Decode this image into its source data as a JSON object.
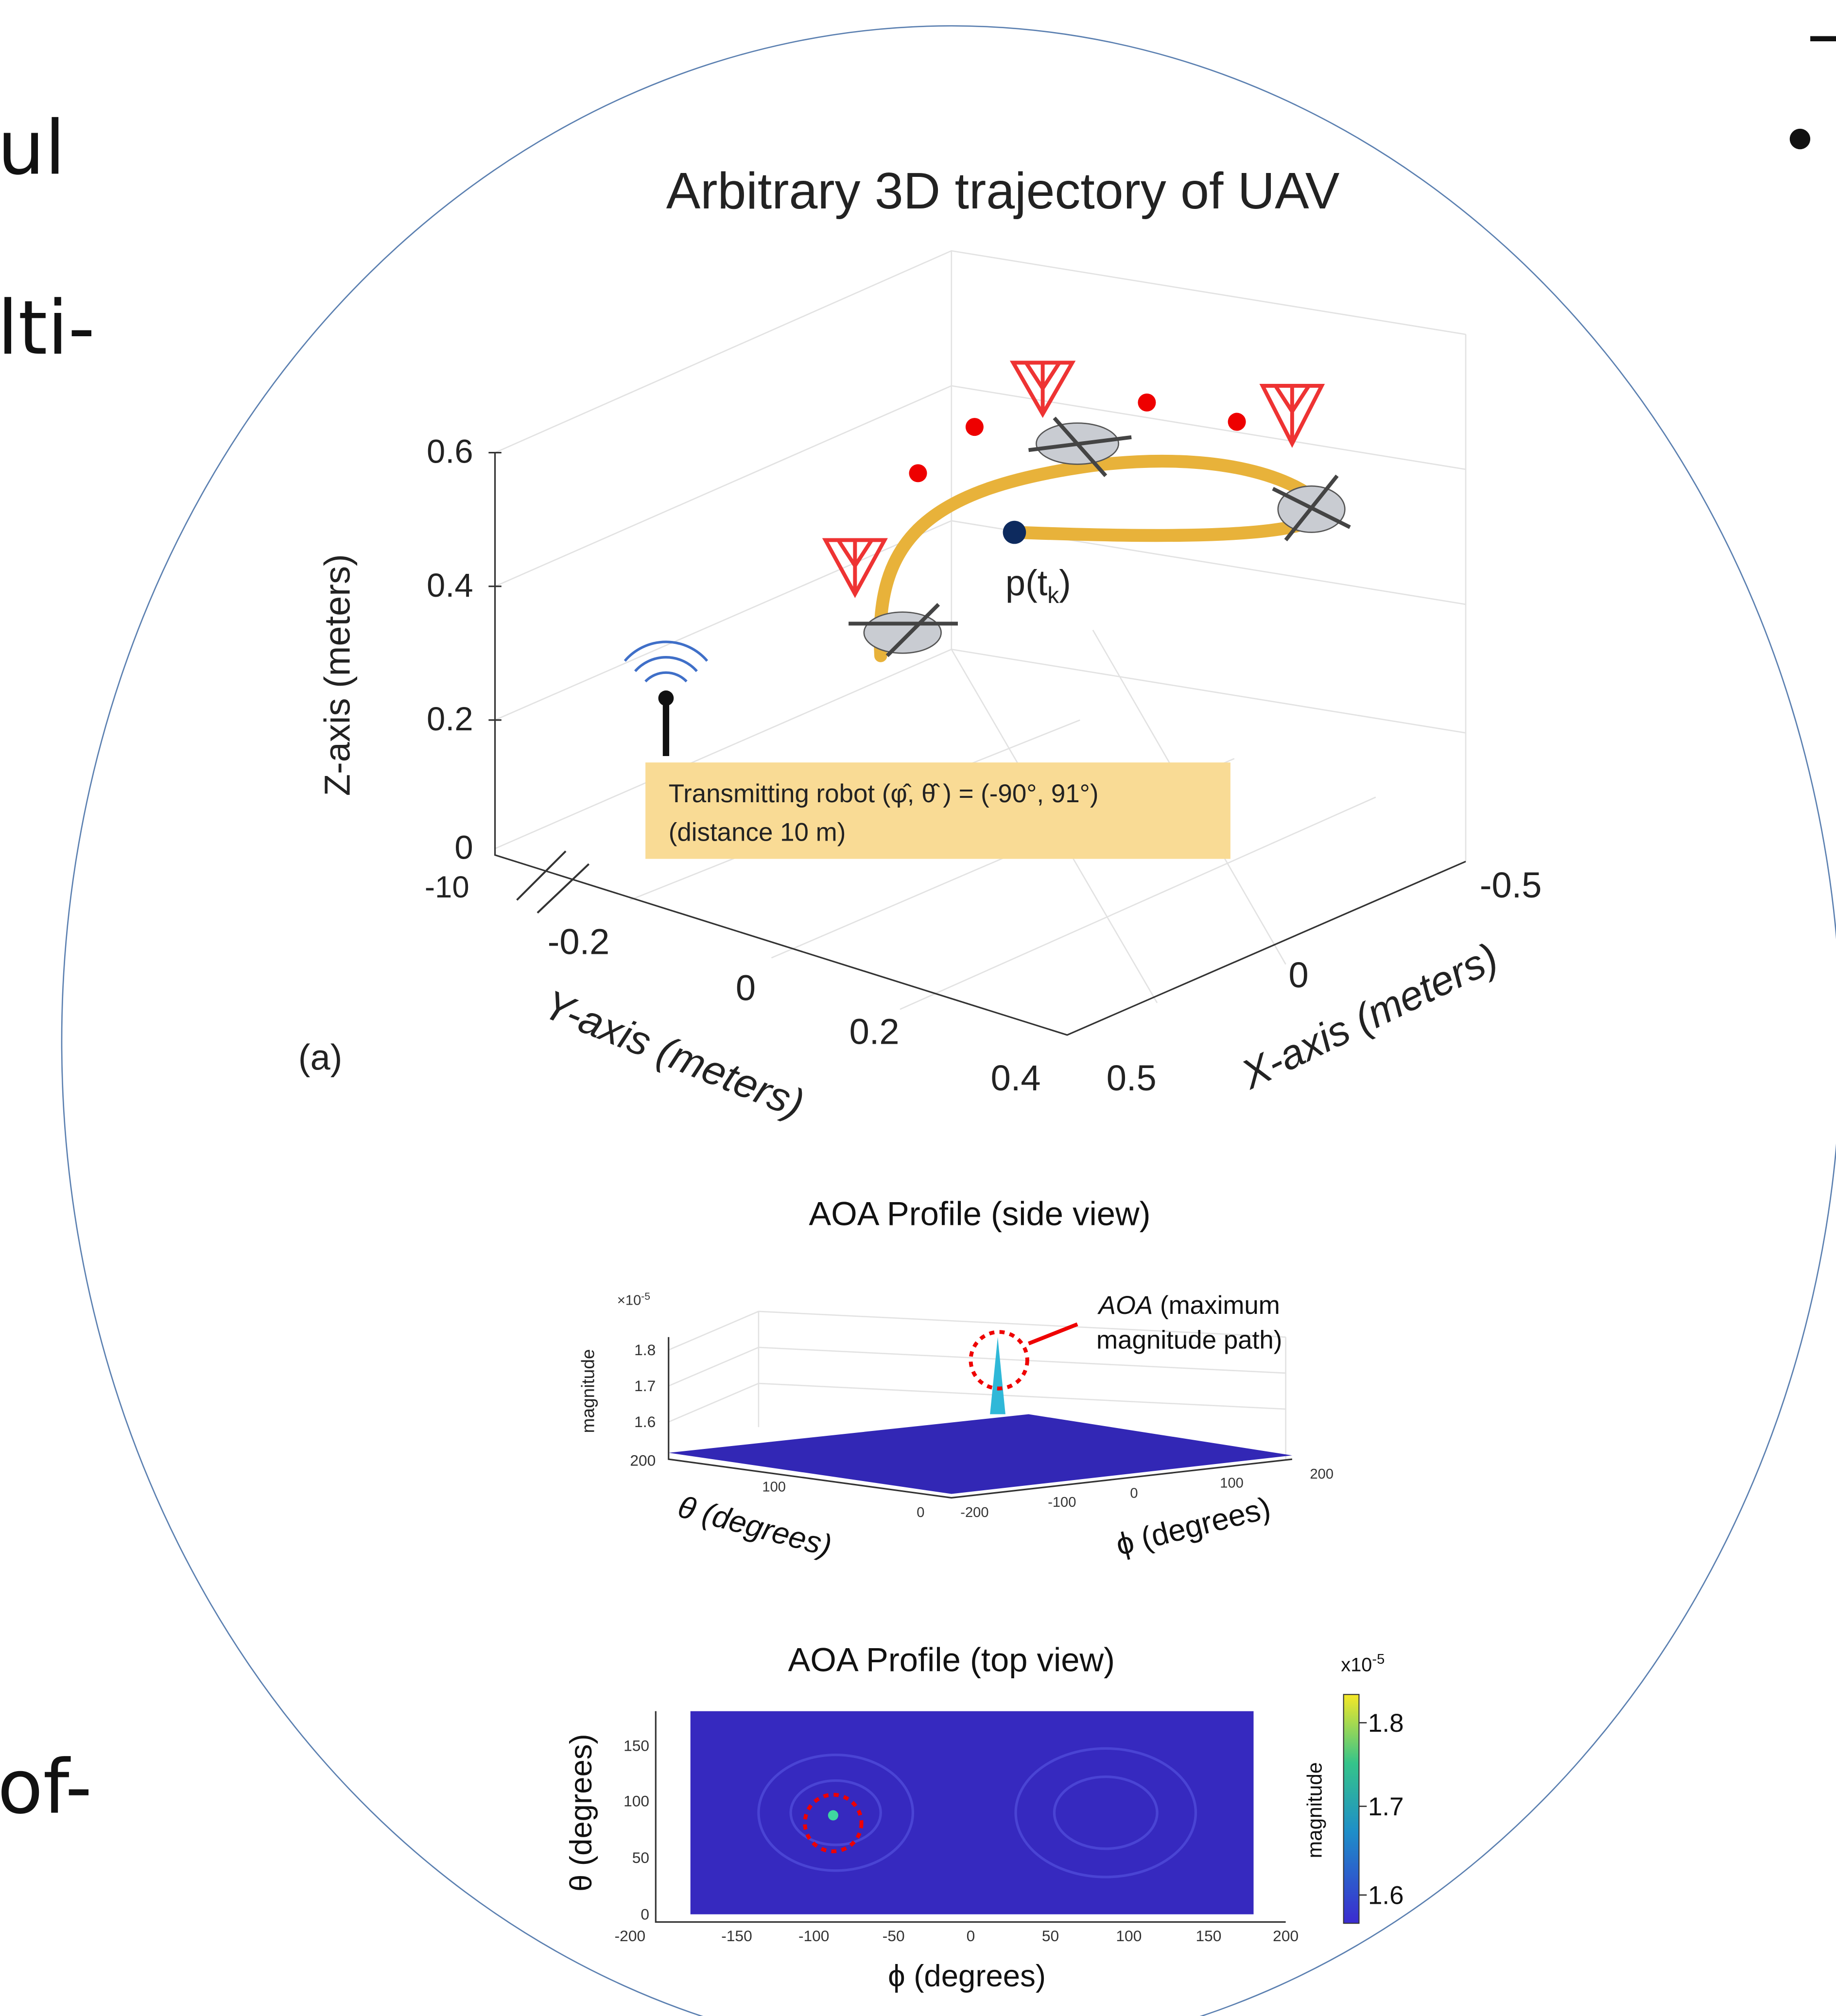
{
  "slide_fragments": {
    "line1": "ul",
    "line2": "lti-",
    "line3": "of-"
  },
  "panel_a": {
    "title": "Arbitrary 3D trajectory of UAV",
    "label": "(a)",
    "z_axis": {
      "label": "Z-axis (meters)",
      "ticks": [
        "0.6",
        "0.4",
        "0.2",
        "0",
        "-10"
      ]
    },
    "y_axis": {
      "label": "Y-axis (meters)",
      "ticks": [
        "-0.2",
        "0",
        "0.2",
        "0.4"
      ]
    },
    "x_axis": {
      "label": "X-axis (meters)",
      "ticks": [
        "-0.5",
        "0",
        "0.5"
      ]
    },
    "point_label": {
      "base": "p(t",
      "sub": "k",
      "close": ")"
    },
    "annotation": {
      "line1": "Transmitting robot (φ̂, θ̂ ) = (-90°, 91°)",
      "line2": "(distance 10 m)"
    }
  },
  "side_view": {
    "title": "AOA Profile (side view)",
    "exponent": {
      "base": "×10",
      "sup": "-5"
    },
    "z_label": "magnitude",
    "z_ticks": [
      "1.8",
      "1.7",
      "1.6",
      "200"
    ],
    "theta_ticks": [
      "100",
      "0"
    ],
    "phi_ticks": [
      "-200",
      "-100",
      "0",
      "100",
      "200"
    ],
    "theta_label": "θ (degrees)",
    "phi_label": "ϕ (degrees)",
    "annotation": {
      "emph": "AOA",
      "rest": " (maximum",
      "line2": "magnitude path)"
    }
  },
  "top_view": {
    "title": "AOA Profile (top view)",
    "y_label": "θ (degrees)",
    "y_ticks": [
      "150",
      "100",
      "50",
      "0"
    ],
    "x_label": "ϕ (degrees)",
    "x_ticks": [
      "-200",
      "-150",
      "-100",
      "-50",
      "0",
      "50",
      "100",
      "150",
      "200"
    ],
    "colorbar": {
      "exponent": {
        "base": "x10",
        "sup": "-5"
      },
      "ticks": [
        "1.8",
        "1.7",
        "1.6"
      ],
      "label": "magnitude"
    }
  }
}
